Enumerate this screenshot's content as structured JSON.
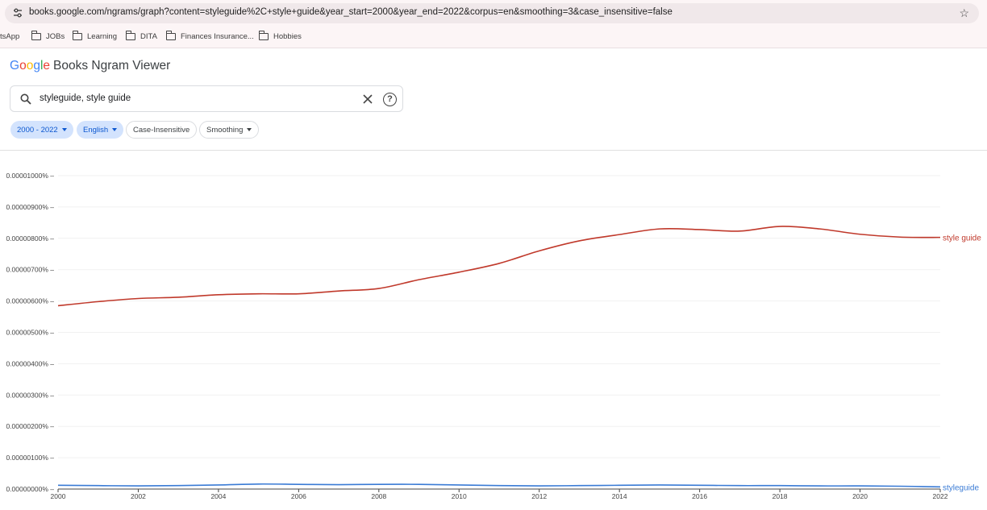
{
  "browser": {
    "url": "books.google.com/ngrams/graph?content=styleguide%2C+style+guide&year_start=2000&year_end=2022&corpus=en&smoothing=3&case_insensitive=false",
    "bookmarks": [
      {
        "label": "tsApp",
        "icon": ""
      },
      {
        "label": "JOBs",
        "icon": "folder-icon"
      },
      {
        "label": "Learning",
        "icon": "folder-icon"
      },
      {
        "label": "DITA",
        "icon": "folder-icon"
      },
      {
        "label": "Finances Insurance...",
        "icon": "folder-icon"
      },
      {
        "label": "Hobbies",
        "icon": "folder-icon"
      }
    ]
  },
  "header": {
    "logo_g": "G",
    "logo_o1": "o",
    "logo_o2": "o",
    "logo_g2": "g",
    "logo_l": "l",
    "logo_e": "e",
    "product": "Books Ngram Viewer"
  },
  "search": {
    "value": "styleguide, style guide"
  },
  "filters": {
    "years": "2000 - 2022",
    "language": "English",
    "case": "Case-Insensitive",
    "smoothing": "Smoothing"
  },
  "colors": {
    "style_guide": "#c0392b",
    "styleguide": "#3a7bd5"
  },
  "chart_data": {
    "type": "line",
    "x": [
      2000,
      2001,
      2002,
      2003,
      2004,
      2005,
      2006,
      2007,
      2008,
      2009,
      2010,
      2011,
      2012,
      2013,
      2014,
      2015,
      2016,
      2017,
      2018,
      2019,
      2020,
      2021,
      2022
    ],
    "series": [
      {
        "name": "style guide",
        "values": [
          5.85e-06,
          5.98e-06,
          6.08e-06,
          6.12e-06,
          6.2e-06,
          6.23e-06,
          6.23e-06,
          6.32e-06,
          6.4e-06,
          6.68e-06,
          6.92e-06,
          7.2e-06,
          7.6e-06,
          7.92e-06,
          8.12e-06,
          8.3e-06,
          8.28e-06,
          8.23e-06,
          8.38e-06,
          8.3e-06,
          8.13e-06,
          8.04e-06,
          8.03e-06
        ],
        "color": "#c0392b"
      },
      {
        "name": "styleguide",
        "values": [
          1.2e-07,
          1.1e-07,
          1e-07,
          1.1e-07,
          1.3e-07,
          1.6e-07,
          1.5e-07,
          1.4e-07,
          1.5e-07,
          1.5e-07,
          1.3e-07,
          1.1e-07,
          1e-07,
          1.1e-07,
          1.2e-07,
          1.3e-07,
          1.2e-07,
          1.1e-07,
          1.1e-07,
          1e-07,
          1e-07,
          9e-08,
          7e-08
        ],
        "color": "#3a7bd5"
      }
    ],
    "yticks": [
      "0.00000000%",
      "0.00000100%",
      "0.00000200%",
      "0.00000300%",
      "0.00000400%",
      "0.00000500%",
      "0.00000600%",
      "0.00000700%",
      "0.00000800%",
      "0.00000900%",
      "0.00001000%"
    ],
    "xticks": [
      "2000",
      "2002",
      "2004",
      "2006",
      "2008",
      "2010",
      "2012",
      "2014",
      "2016",
      "2018",
      "2020",
      "2022"
    ],
    "ylim": [
      0,
      1e-05
    ],
    "xlim": [
      2000,
      2022
    ],
    "grid": true,
    "legend": "line-end labels"
  }
}
